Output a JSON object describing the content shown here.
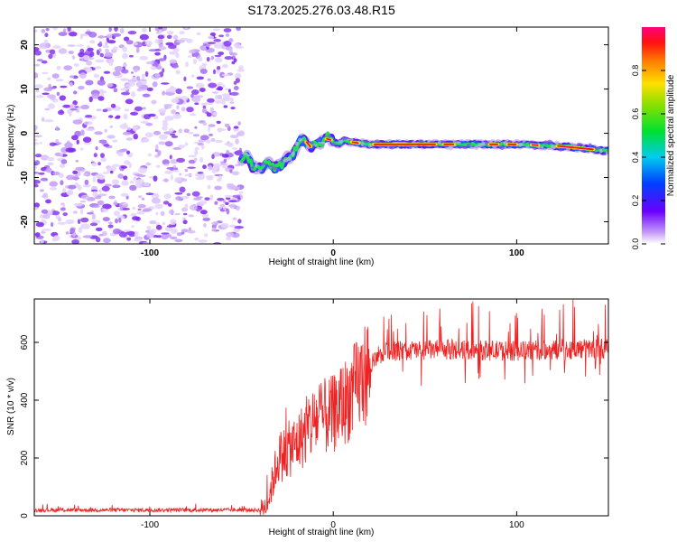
{
  "figure_title": "S173.2025.276.03.48.R15",
  "colors": {
    "snr_line": "#ee2222",
    "noise_dots": "#8a3cf0",
    "background": "#ffffff"
  },
  "chart_data": [
    {
      "type": "heatmap",
      "title": "S173.2025.276.03.48.R15",
      "xlabel": "Height of straight line (km)",
      "ylabel": "Frequency (Hz)",
      "xlim": [
        -163,
        150
      ],
      "ylim": [
        -25,
        24
      ],
      "xticks": [
        -100,
        0,
        100
      ],
      "xtick_labels": [
        "-100",
        "0",
        "100"
      ],
      "yticks": [
        20,
        10,
        0,
        -10,
        -20
      ],
      "ytick_labels": [
        "20",
        "10",
        "0",
        "-10",
        "-20"
      ],
      "noise_region_x": [
        -163,
        -50
      ],
      "ridge_points": [
        {
          "x": -50,
          "y": -6.0
        },
        {
          "x": -47,
          "y": -5.0
        },
        {
          "x": -44,
          "y": -7.5
        },
        {
          "x": -40,
          "y": -8.0
        },
        {
          "x": -36,
          "y": -6.5
        },
        {
          "x": -32,
          "y": -8.0
        },
        {
          "x": -28,
          "y": -7.0
        },
        {
          "x": -25,
          "y": -5.5
        },
        {
          "x": -22,
          "y": -5.0
        },
        {
          "x": -20,
          "y": -3.0
        },
        {
          "x": -18,
          "y": -1.5
        },
        {
          "x": -15,
          "y": -2.0
        },
        {
          "x": -12,
          "y": -3.0
        },
        {
          "x": -8,
          "y": -2.0
        },
        {
          "x": -5,
          "y": -2.0
        },
        {
          "x": -3,
          "y": -0.5
        },
        {
          "x": 0,
          "y": -2.0
        },
        {
          "x": 3,
          "y": -2.5
        },
        {
          "x": 6,
          "y": -1.5
        },
        {
          "x": 10,
          "y": -2.0
        },
        {
          "x": 20,
          "y": -2.5
        },
        {
          "x": 40,
          "y": -2.5
        },
        {
          "x": 60,
          "y": -2.5
        },
        {
          "x": 80,
          "y": -2.5
        },
        {
          "x": 100,
          "y": -2.5
        },
        {
          "x": 120,
          "y": -2.8
        },
        {
          "x": 140,
          "y": -3.5
        },
        {
          "x": 148,
          "y": -4.0
        }
      ],
      "colorbar": {
        "label": "Normalized spectral amplitude",
        "range": [
          0,
          1
        ],
        "ticks": [
          0.0,
          0.2,
          0.4,
          0.6,
          0.8
        ],
        "tick_labels": [
          "0.0",
          "0.2",
          "0.4",
          "0.6",
          "0.8"
        ]
      }
    },
    {
      "type": "line",
      "title": "",
      "xlabel": "Height of straight line (km)",
      "ylabel": "SNR (10 * v/v)",
      "xlim": [
        -163,
        150
      ],
      "ylim": [
        0,
        750
      ],
      "xticks": [
        -100,
        0,
        100
      ],
      "xtick_labels": [
        "-100",
        "0",
        "100"
      ],
      "yticks": [
        0,
        200,
        400,
        600
      ],
      "ytick_labels": [
        "0",
        "200",
        "400",
        "600"
      ],
      "series": [
        {
          "name": "SNR",
          "trend": [
            {
              "x": -163,
              "y": 20
            },
            {
              "x": -40,
              "y": 20
            },
            {
              "x": -36,
              "y": 40
            },
            {
              "x": -30,
              "y": 200
            },
            {
              "x": -20,
              "y": 250
            },
            {
              "x": -10,
              "y": 330
            },
            {
              "x": 0,
              "y": 350
            },
            {
              "x": 10,
              "y": 420
            },
            {
              "x": 20,
              "y": 520
            },
            {
              "x": 30,
              "y": 570
            },
            {
              "x": 60,
              "y": 575
            },
            {
              "x": 100,
              "y": 570
            },
            {
              "x": 150,
              "y": 580
            }
          ]
        }
      ]
    }
  ]
}
